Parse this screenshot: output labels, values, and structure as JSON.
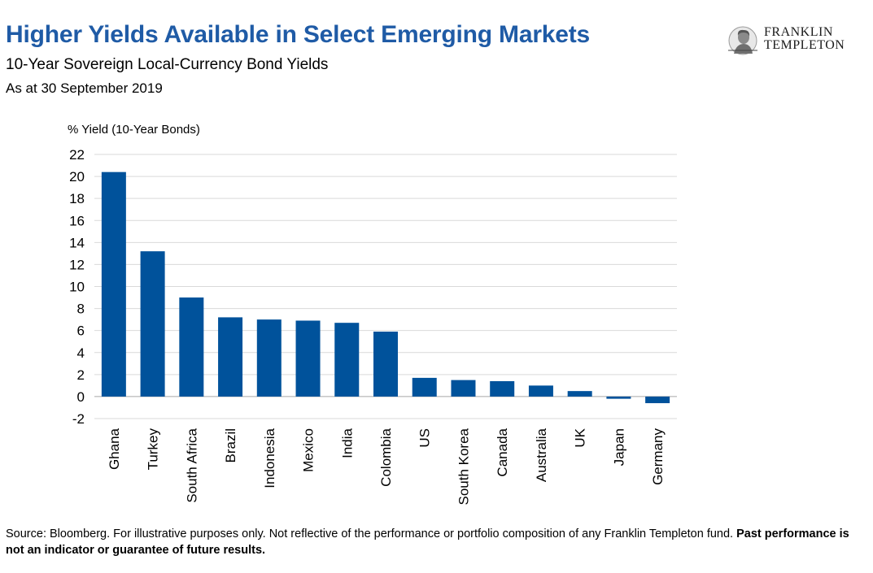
{
  "header": {
    "title": "Higher Yields Available in Select Emerging Markets",
    "subtitle": "10-Year Sovereign Local-Currency Bond Yields",
    "date": "As at 30 September 2019"
  },
  "logo": {
    "line1": "FRANKLIN",
    "line2": "TEMPLETON",
    "icon": "franklin-portrait-icon"
  },
  "chart_data": {
    "type": "bar",
    "ylabel": "% Yield (10-Year Bonds)",
    "ylim": [
      -2,
      22
    ],
    "yticks": [
      "22",
      "20",
      "18",
      "16",
      "14",
      "12",
      "10",
      "8",
      "6",
      "4",
      "2",
      "0",
      "-2"
    ],
    "categories": [
      "Ghana",
      "Turkey",
      "South Africa",
      "Brazil",
      "Indonesia",
      "Mexico",
      "India",
      "Colombia",
      "US",
      "South Korea",
      "Canada",
      "Australia",
      "UK",
      "Japan",
      "Germany"
    ],
    "values": [
      20.4,
      13.2,
      9.0,
      7.2,
      7.0,
      6.9,
      6.7,
      5.9,
      1.7,
      1.5,
      1.4,
      1.0,
      0.5,
      -0.2,
      -0.6
    ],
    "grid": true,
    "bar_color": "#00529b",
    "grid_color": "#d9d9d9"
  },
  "footer": {
    "text": "Source: Bloomberg. For illustrative purposes only. Not reflective of the performance or portfolio composition of any Franklin Templeton fund. ",
    "bold": "Past performance is not an indicator or guarantee of future results."
  }
}
